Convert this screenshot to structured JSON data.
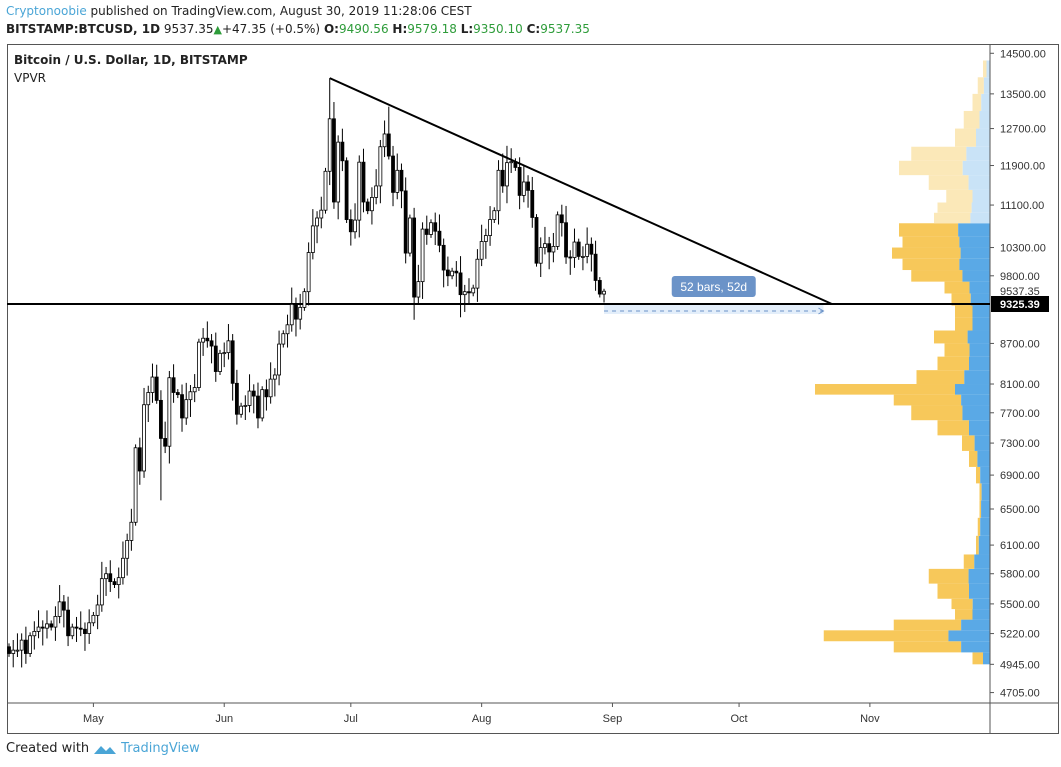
{
  "header": {
    "author": "Cryptonoobie",
    "published": " published on TradingView.com, August 30, 2019 11:28:06 CEST",
    "symbol": "BITSTAMP:BTCUSD, 1D",
    "last": "9537.35",
    "change": "+47.35 (+0.5%)",
    "o_label": "O:",
    "o": "9490.56",
    "h_label": "H:",
    "h": "9579.18",
    "l_label": "L:",
    "l": "9350.10",
    "c_label": "C:",
    "c": "9537.35"
  },
  "legend": {
    "title": "Bitcoin / U.S. Dollar, 1D, BITSTAMP",
    "indicator": "VPVR"
  },
  "footer": {
    "created": "Created with",
    "brand": "TradingView"
  },
  "chart_data": {
    "type": "candlestick",
    "scale": "log",
    "start_date": "2019-04-11",
    "closes": [
      5040,
      5070,
      5070,
      5160,
      5040,
      5200,
      5240,
      5280,
      5270,
      5310,
      5280,
      5380,
      5520,
      5440,
      5200,
      5280,
      5270,
      5260,
      5220,
      5320,
      5390,
      5490,
      5750,
      5800,
      5720,
      5690,
      5760,
      5960,
      6150,
      6350,
      7240,
      6950,
      7810,
      7980,
      8200,
      7870,
      7360,
      7260,
      8190,
      7980,
      7950,
      7630,
      7880,
      7990,
      8050,
      8720,
      8780,
      8740,
      8660,
      8280,
      8550,
      8560,
      8740,
      8110,
      7680,
      7790,
      7800,
      8000,
      7930,
      7630,
      8020,
      7920,
      8170,
      8230,
      8690,
      8850,
      8990,
      9320,
      9080,
      9270,
      9530,
      10210,
      10700,
      10850,
      11000,
      11780,
      12920,
      11160,
      12400,
      12000,
      10820,
      10590,
      10810,
      11970,
      11160,
      10990,
      11250,
      11480,
      12300,
      12580,
      12100,
      11350,
      11800,
      11380,
      10200,
      10850,
      9440,
      9700,
      10640,
      10540,
      10760,
      10600,
      10340,
      9900,
      9800,
      9880,
      9850,
      9480,
      9530,
      9510,
      9590,
      10090,
      10410,
      10520,
      10820,
      10990,
      11800,
      11480,
      11960,
      11980,
      11860,
      11290,
      11560,
      11390,
      10860,
      10020,
      10300,
      10370,
      10220,
      10320,
      10910,
      10760,
      10130,
      10120,
      10400,
      10140,
      10140,
      10360,
      10180,
      9720,
      9490,
      9537.35
    ],
    "first_open": 5100,
    "wick_pct": 0.018,
    "high_overrides": {
      "76": 13880,
      "90": 13200,
      "35": 8380,
      "118": 12320,
      "141": 9579.18
    },
    "low_overrides": {
      "36": 6600,
      "96": 9070,
      "107": 9110,
      "141": 9350.1
    },
    "trendline": {
      "from": {
        "day": 76,
        "price": 13880
      },
      "to": {
        "day": 195,
        "price": 9325.39
      }
    },
    "support_level": 9325.39,
    "measure": {
      "from_day": 141,
      "to_day": 193,
      "label": "52 bars, 52d"
    },
    "price_ticks": [
      "14500.00",
      "13500.00",
      "12700.00",
      "11900.00",
      "11100.00",
      "10300.00",
      "9800.00",
      "8700.00",
      "8100.00",
      "7700.00",
      "7300.00",
      "6900.00",
      "6500.00",
      "6100.00",
      "5800.00",
      "5500.00",
      "5220.00",
      "4945.00",
      "4705.00"
    ],
    "last_price_label": "9537.35",
    "level_label": "9325.39",
    "months": [
      {
        "label": "May",
        "day": 20
      },
      {
        "label": "Jun",
        "day": 51
      },
      {
        "label": "Jul",
        "day": 81
      },
      {
        "label": "Aug",
        "day": 112
      },
      {
        "label": "Sep",
        "day": 143
      },
      {
        "label": "Oct",
        "day": 173
      },
      {
        "label": "Nov",
        "day": 204
      }
    ],
    "vpvr": {
      "value_area_top": 10700,
      "bins": [
        [
          4945,
          0.1,
          0.4
        ],
        [
          5050,
          0.55,
          0.3
        ],
        [
          5150,
          0.95,
          0.25
        ],
        [
          5250,
          0.55,
          0.3
        ],
        [
          5350,
          0.2,
          0.5
        ],
        [
          5450,
          0.22,
          0.45
        ],
        [
          5550,
          0.3,
          0.4
        ],
        [
          5700,
          0.35,
          0.35
        ],
        [
          5850,
          0.15,
          0.6
        ],
        [
          6000,
          0.08,
          0.8
        ],
        [
          6200,
          0.07,
          0.8
        ],
        [
          6400,
          0.06,
          0.85
        ],
        [
          6600,
          0.06,
          0.8
        ],
        [
          6800,
          0.08,
          0.7
        ],
        [
          7000,
          0.12,
          0.6
        ],
        [
          7200,
          0.16,
          0.55
        ],
        [
          7400,
          0.3,
          0.4
        ],
        [
          7600,
          0.45,
          0.35
        ],
        [
          7800,
          0.55,
          0.3
        ],
        [
          7950,
          1.0,
          0.2
        ],
        [
          8100,
          0.42,
          0.35
        ],
        [
          8300,
          0.3,
          0.4
        ],
        [
          8500,
          0.26,
          0.45
        ],
        [
          8700,
          0.32,
          0.4
        ],
        [
          8900,
          0.2,
          0.5
        ],
        [
          9100,
          0.2,
          0.5
        ],
        [
          9300,
          0.22,
          0.5
        ],
        [
          9500,
          0.26,
          0.45
        ],
        [
          9700,
          0.45,
          0.35
        ],
        [
          9900,
          0.5,
          0.35
        ],
        [
          10100,
          0.56,
          0.3
        ],
        [
          10300,
          0.5,
          0.35
        ],
        [
          10500,
          0.52,
          0.35
        ],
        [
          10750,
          0.32,
          0.35
        ],
        [
          10950,
          0.3,
          0.35
        ],
        [
          11150,
          0.25,
          0.4
        ],
        [
          11400,
          0.35,
          0.35
        ],
        [
          11700,
          0.52,
          0.3
        ],
        [
          12000,
          0.45,
          0.3
        ],
        [
          12300,
          0.2,
          0.4
        ],
        [
          12700,
          0.15,
          0.4
        ],
        [
          13100,
          0.1,
          0.5
        ],
        [
          13500,
          0.07,
          0.5
        ],
        [
          13900,
          0.04,
          0.5
        ]
      ],
      "colors": {
        "up": "#5aa9e6",
        "down": "#f7c85a",
        "up_light": "#c9e3f7",
        "down_light": "#fbe8b8"
      }
    }
  }
}
